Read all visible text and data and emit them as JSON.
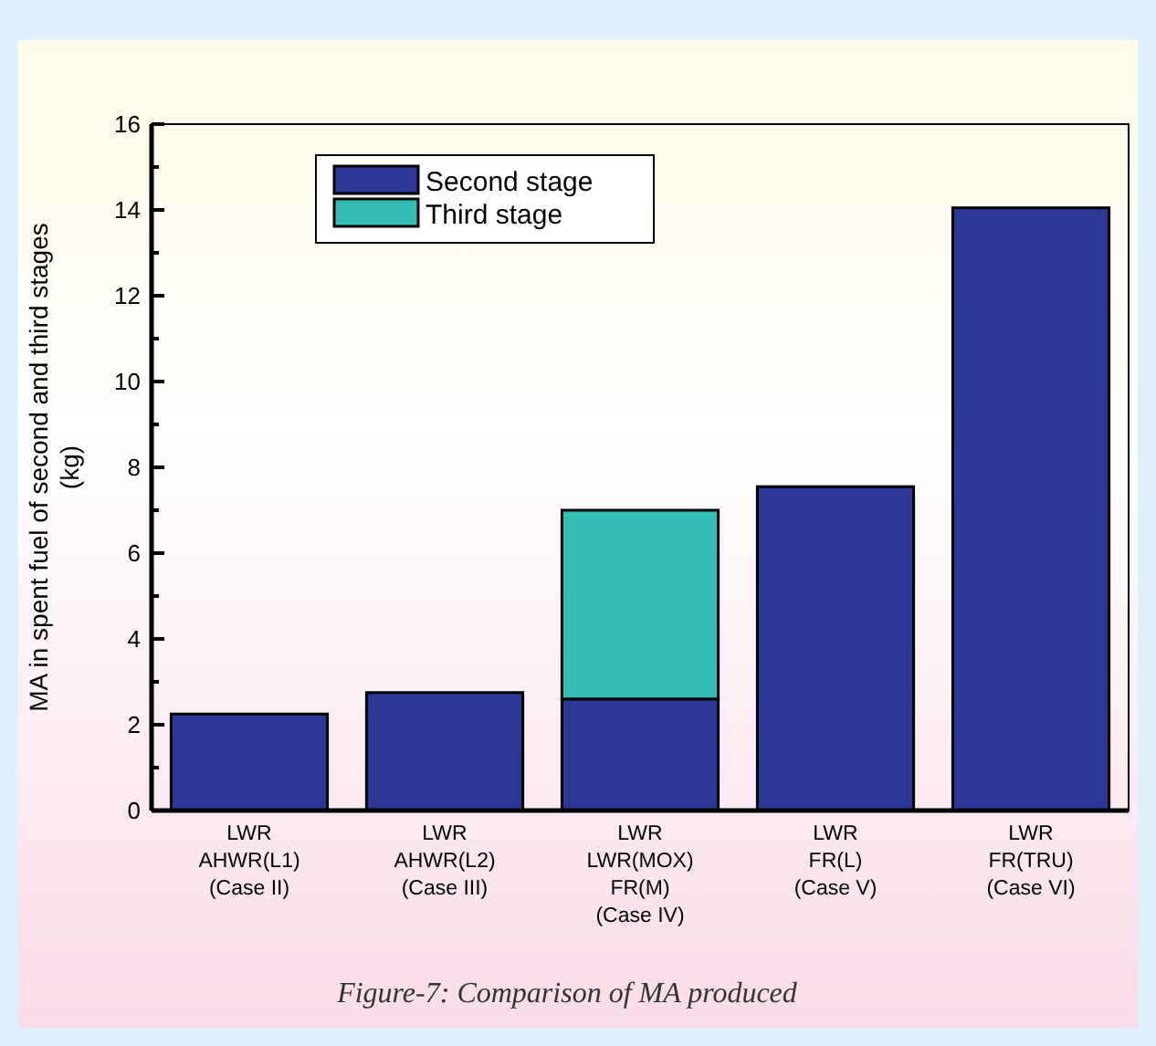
{
  "chart_data": {
    "type": "bar",
    "stacked": true,
    "categories": [
      "LWR\nAHWR(L1)\n(Case II)",
      "LWR\nAHWR(L2)\n(Case III)",
      "LWR\nLWR(MOX)\nFR(M)\n(Case IV)",
      "LWR\nFR(L)\n(Case V)",
      "LWR\nFR(TRU)\n(Case VI)"
    ],
    "series": [
      {
        "name": "Second stage",
        "color": "#2c3796",
        "values": [
          2.25,
          2.75,
          2.6,
          7.55,
          14.05
        ]
      },
      {
        "name": "Third stage",
        "color": "#31bdb6",
        "values": [
          null,
          null,
          4.4,
          null,
          null
        ]
      }
    ],
    "ylabel": "MA in spent fuel of second and third stages\n(kg)",
    "ylim": [
      0,
      16
    ],
    "yticks": [
      0,
      {
        "value": 1,
        "label": null
      },
      2,
      {
        "value": 3,
        "label": null
      },
      4,
      {
        "value": 5,
        "label": null
      },
      6,
      {
        "value": 7,
        "label": null
      },
      8,
      {
        "value": 9,
        "label": null
      },
      10,
      {
        "value": 11,
        "label": null
      },
      12,
      {
        "value": 13,
        "label": null
      },
      14,
      {
        "value": 15,
        "label": null
      },
      16
    ],
    "legend": "top left",
    "annotations": [
      "Figure-7: Comparison of MA produced"
    ]
  }
}
